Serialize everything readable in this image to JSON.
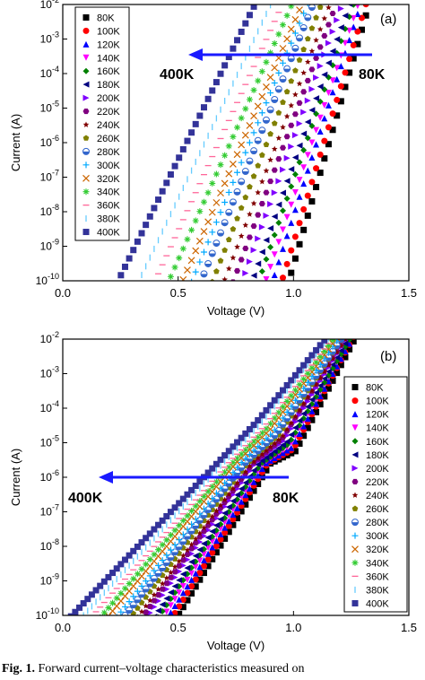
{
  "figure": {
    "caption_label": "Fig. 1.",
    "caption_text": "Forward current–voltage characteristics measured on"
  },
  "series_meta": [
    {
      "name": "80K",
      "marker": "square",
      "color": "#000000"
    },
    {
      "name": "100K",
      "marker": "circle",
      "color": "#ff0000"
    },
    {
      "name": "120K",
      "marker": "triangle-up",
      "color": "#0000ff"
    },
    {
      "name": "140K",
      "marker": "triangle-down",
      "color": "#ff00ff"
    },
    {
      "name": "160K",
      "marker": "diamond",
      "color": "#008000"
    },
    {
      "name": "180K",
      "marker": "triangle-left",
      "color": "#000080"
    },
    {
      "name": "200K",
      "marker": "triangle-right",
      "color": "#8000ff"
    },
    {
      "name": "220K",
      "marker": "hexagon",
      "color": "#800080"
    },
    {
      "name": "240K",
      "marker": "star",
      "color": "#800000"
    },
    {
      "name": "260K",
      "marker": "pentagon",
      "color": "#808000"
    },
    {
      "name": "280K",
      "marker": "half-circle",
      "color": "#3366cc"
    },
    {
      "name": "300K",
      "marker": "plus",
      "color": "#00aaff"
    },
    {
      "name": "320K",
      "marker": "cross",
      "color": "#cc6600"
    },
    {
      "name": "340K",
      "marker": "asterisk",
      "color": "#33cc33"
    },
    {
      "name": "360K",
      "marker": "dash",
      "color": "#ff6699"
    },
    {
      "name": "380K",
      "marker": "bar",
      "color": "#66ccff"
    },
    {
      "name": "400K",
      "marker": "square",
      "color": "#333399"
    }
  ],
  "chart_data": [
    {
      "type": "scatter",
      "panel_label": "(a)",
      "xlabel": "Voltage (V)",
      "ylabel": "Current (A)",
      "xlim": [
        0.0,
        1.5
      ],
      "ylim": [
        1e-10,
        0.01
      ],
      "yscale": "log",
      "x_ticks": [
        "0.0",
        "0.5",
        "1.0",
        "1.5"
      ],
      "y_ticks": [
        "10-10",
        "10-9",
        "10-8",
        "10-7",
        "10-6",
        "10-5",
        "10-4",
        "10-3",
        "10-2"
      ],
      "legend_position": "top-left",
      "annotation_left": "400K",
      "annotation_right": "80K",
      "arrow_direction": "left",
      "series_onset_voltage": {
        "80K": 0.98,
        "100K": 0.95,
        "120K": 0.91,
        "140K": 0.88,
        "160K": 0.85,
        "180K": 0.82,
        "200K": 0.78,
        "220K": 0.74,
        "240K": 0.7,
        "260K": 0.65,
        "280K": 0.6,
        "300K": 0.56,
        "320K": 0.52,
        "340K": 0.46,
        "360K": 0.4,
        "380K": 0.33,
        "400K": 0.24
      },
      "series_slope_decades_per_volt": {
        "80K": 23,
        "100K": 22,
        "120K": 21,
        "140K": 20,
        "160K": 19.5,
        "180K": 19,
        "200K": 18.5,
        "220K": 18,
        "240K": 17.5,
        "260K": 17,
        "280K": 16.5,
        "300K": 16,
        "320K": 15.5,
        "340K": 15,
        "360K": 14.5,
        "380K": 14,
        "400K": 13.5
      }
    },
    {
      "type": "scatter",
      "panel_label": "(b)",
      "xlabel": "Voltage (V)",
      "ylabel": "Current (A)",
      "xlim": [
        0.0,
        1.5
      ],
      "ylim": [
        1e-10,
        0.01
      ],
      "yscale": "log",
      "x_ticks": [
        "0.0",
        "0.5",
        "1.0",
        "1.5"
      ],
      "y_ticks": [
        "10-10",
        "10-9",
        "10-8",
        "10-7",
        "10-6",
        "10-5",
        "10-4",
        "10-3",
        "10-2"
      ],
      "legend_position": "right",
      "annotation_left": "400K",
      "annotation_right": "80K",
      "arrow_direction": "left",
      "series_onset_voltage": {
        "80K": 0.5,
        "100K": 0.48,
        "120K": 0.46,
        "140K": 0.44,
        "160K": 0.42,
        "180K": 0.4,
        "200K": 0.37,
        "220K": 0.35,
        "240K": 0.33,
        "260K": 0.3,
        "280K": 0.27,
        "300K": 0.24,
        "320K": 0.2,
        "340K": 0.17,
        "360K": 0.13,
        "380K": 0.09,
        "400K": 0.04
      },
      "series_slope_decades_per_volt": {
        "80K": 11,
        "100K": 10.8,
        "120K": 10.5,
        "140K": 10.3,
        "160K": 10,
        "180K": 9.8,
        "200K": 9.5,
        "220K": 9.3,
        "240K": 9,
        "260K": 8.8,
        "280K": 8.5,
        "300K": 8.3,
        "320K": 8,
        "340K": 7.8,
        "360K": 7.5,
        "380K": 7.3,
        "400K": 7
      },
      "kink_current_A": 1e-05
    }
  ]
}
